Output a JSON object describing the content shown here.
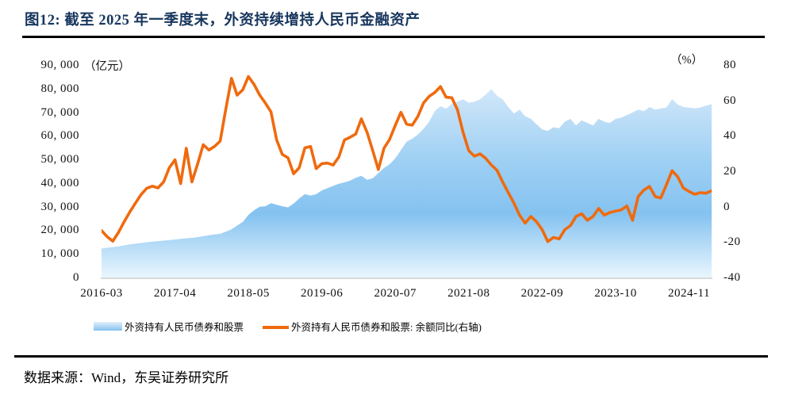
{
  "figure": {
    "title": "图12:  截至 2025 年一季度末，外资持续增持人民币金融资产",
    "source": "数据来源：Wind，东吴证券研究所"
  },
  "colors": {
    "title": "#17365D",
    "rule": "#000000",
    "line": "#EF6A0E",
    "baseline": "#D9D9D9",
    "axis_text": "#111111",
    "area_gradient": [
      "#E2EFFB",
      "#9FD0F4",
      "#84C2F0",
      "#E9F6FE"
    ]
  },
  "chart_data": {
    "type": "area",
    "combo": [
      "area",
      "line"
    ],
    "x_start": "2016-03",
    "x_end": "2025-03",
    "months_total": 108,
    "grid": "off",
    "legend_position": "bottom",
    "x_ticks": {
      "labels": [
        "2016-03",
        "2017-04",
        "2018-05",
        "2019-06",
        "2020-07",
        "2021-08",
        "2022-09",
        "2023-10",
        "2024-11"
      ],
      "month_index": [
        0,
        13,
        26,
        39,
        52,
        65,
        78,
        91,
        104
      ]
    },
    "left_axis": {
      "unit": "（亿元）",
      "min": 0,
      "max": 90000,
      "tick_values": [
        90000,
        80000,
        70000,
        60000,
        50000,
        40000,
        30000,
        20000,
        10000,
        0
      ],
      "tick_labels": [
        "90, 000",
        "80, 000",
        "70, 000",
        "60, 000",
        "50, 000",
        "40, 000",
        "30, 000",
        "20, 000",
        "10, 000",
        "0"
      ]
    },
    "right_axis": {
      "unit": "（%）",
      "min": -40,
      "max": 80,
      "tick_values": [
        80,
        60,
        40,
        20,
        0,
        -20,
        -40
      ],
      "tick_labels": [
        "80",
        "60",
        "40",
        "20",
        "0",
        "-20",
        "-40"
      ]
    },
    "series": [
      {
        "name": "外资持有人民币债券和股票",
        "kind": "area",
        "axis": "left",
        "unit": "亿元",
        "values": [
          12300,
          12600,
          12900,
          13200,
          13600,
          14000,
          14300,
          14600,
          14900,
          15200,
          15400,
          15600,
          15900,
          16100,
          16400,
          16600,
          16800,
          17100,
          17500,
          17900,
          18200,
          18500,
          19400,
          20400,
          22000,
          23500,
          26500,
          28500,
          30000,
          30200,
          31500,
          30800,
          30200,
          29700,
          31300,
          33500,
          35300,
          34700,
          35300,
          36900,
          37800,
          38800,
          39700,
          40300,
          41000,
          42200,
          43100,
          41400,
          42000,
          44200,
          46400,
          48000,
          50500,
          54000,
          57500,
          58800,
          60500,
          63000,
          66000,
          70500,
          72500,
          71500,
          73500,
          74500,
          75500,
          74000,
          74500,
          75500,
          77500,
          79800,
          77000,
          75500,
          72200,
          69400,
          71100,
          68300,
          67200,
          64900,
          62700,
          62100,
          63600,
          63200,
          66000,
          67200,
          64400,
          66600,
          65500,
          64400,
          67200,
          66000,
          65500,
          67200,
          67700,
          68800,
          69900,
          71100,
          70500,
          72200,
          71100,
          71600,
          72000,
          75500,
          73300,
          72200,
          72000,
          71600,
          72000,
          72800,
          73400
        ]
      },
      {
        "name": "外资持有人民币债券和股票: 余额同比(右轴)",
        "kind": "line",
        "axis": "right",
        "unit": "%",
        "values": [
          -13.5,
          -17,
          -19.5,
          -14.5,
          -8.5,
          -3,
          2,
          6.8,
          10.4,
          11.6,
          10.6,
          14,
          22,
          26.5,
          13,
          33,
          14,
          24,
          35,
          32,
          34,
          37,
          55,
          72.5,
          63,
          66,
          73.5,
          69,
          63,
          58.5,
          53.5,
          37.7,
          29.5,
          27.6,
          18.6,
          22,
          33.2,
          34,
          21.5,
          24.3,
          24.6,
          23.5,
          28,
          37.7,
          39.2,
          41,
          49.6,
          42,
          31.7,
          21,
          33,
          38,
          46,
          53.3,
          46.6,
          46,
          51,
          58.6,
          62.3,
          64.5,
          67.8,
          61.8,
          61.5,
          54.8,
          42,
          31.7,
          28.5,
          29.8,
          27.3,
          23.6,
          20.6,
          14,
          7.9,
          2,
          -4.8,
          -9.3,
          -5.5,
          -8.5,
          -13,
          -19.7,
          -17.4,
          -18.2,
          -13,
          -10.7,
          -5.5,
          -4,
          -7.7,
          -5.5,
          -1,
          -4.8,
          -3.3,
          -2.5,
          -1.8,
          0.4,
          -7.7,
          5.7,
          9.4,
          11.4,
          5.7,
          4.9,
          12.4,
          20.3,
          16.8,
          10.5,
          8.6,
          7,
          7.9,
          7.6,
          9
        ]
      }
    ]
  }
}
